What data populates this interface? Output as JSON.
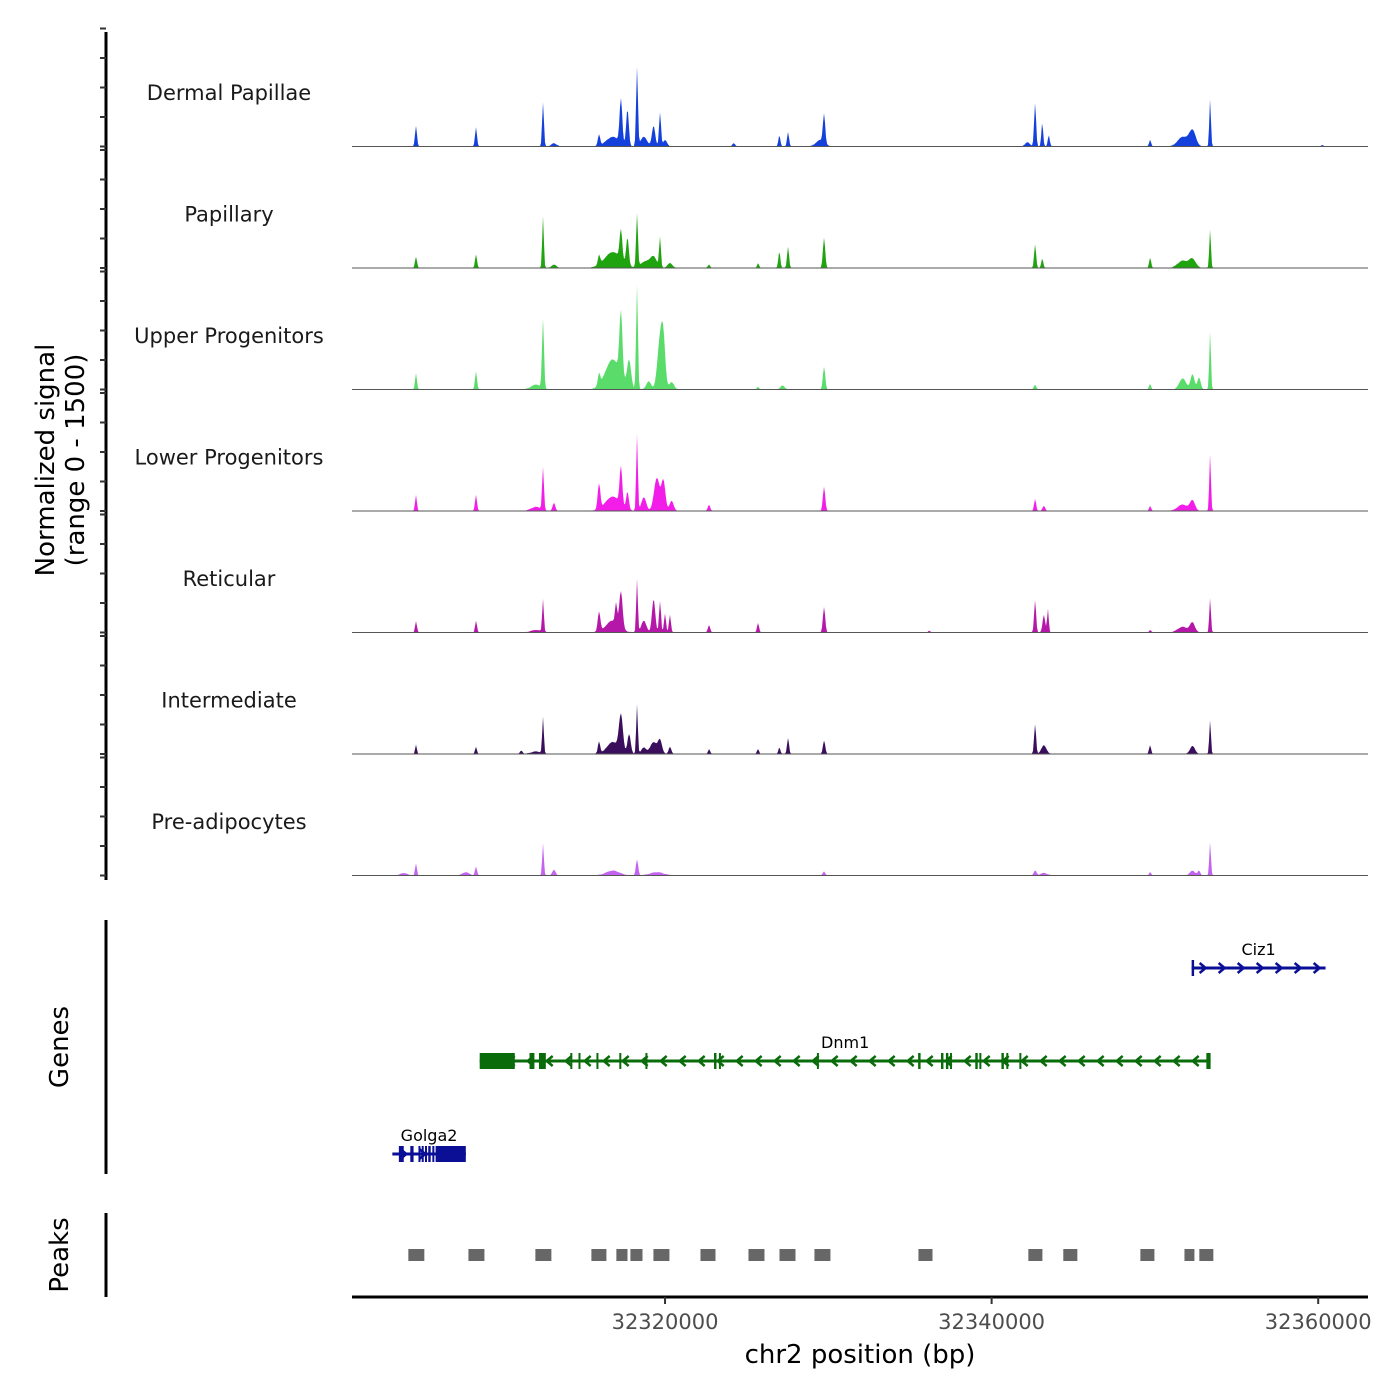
{
  "chart_data": {
    "type": "area",
    "title": "",
    "xlabel": "chr2 position (bp)",
    "ylabel_line1": "Normalized signal",
    "ylabel_line2": "(range 0 - 1500)",
    "xlim": [
      32300830,
      32363050
    ],
    "ylim": [
      0,
      1500
    ],
    "x_ticks": [
      32320000,
      32340000,
      32360000
    ],
    "x_tick_labels": [
      "32320000",
      "32340000",
      "32360000"
    ],
    "grid": false,
    "legend": "none",
    "series": [
      {
        "name": "Dermal Papillae",
        "color": "#1440DC",
        "peaks": [
          [
            32304749,
            260,
            60
          ],
          [
            32308424,
            240,
            60
          ],
          [
            32312528,
            560,
            55
          ],
          [
            32313200,
            40,
            150
          ],
          [
            32315958,
            140,
            70
          ],
          [
            32316800,
            120,
            400
          ],
          [
            32317300,
            560,
            80
          ],
          [
            32317700,
            460,
            80
          ],
          [
            32318285,
            1000,
            55
          ],
          [
            32318700,
            120,
            200
          ],
          [
            32319300,
            260,
            100
          ],
          [
            32319694,
            430,
            60
          ],
          [
            32320000,
            80,
            120
          ],
          [
            32324200,
            40,
            80
          ],
          [
            32327000,
            140,
            60
          ],
          [
            32327534,
            180,
            60
          ],
          [
            32329739,
            370,
            70
          ],
          [
            32329500,
            80,
            250
          ],
          [
            32342200,
            50,
            150
          ],
          [
            32342663,
            550,
            60
          ],
          [
            32343100,
            300,
            55
          ],
          [
            32343500,
            140,
            60
          ],
          [
            32349706,
            80,
            60
          ],
          [
            32351700,
            120,
            300
          ],
          [
            32352300,
            200,
            200
          ],
          [
            32353381,
            600,
            50
          ],
          [
            32360241,
            20,
            60
          ]
        ]
      },
      {
        "name": "Papillary",
        "color": "#1FA30F",
        "peaks": [
          [
            32304749,
            140,
            60
          ],
          [
            32308424,
            170,
            60
          ],
          [
            32312528,
            660,
            50
          ],
          [
            32313200,
            40,
            150
          ],
          [
            32315958,
            120,
            70
          ],
          [
            32316800,
            200,
            500
          ],
          [
            32317300,
            380,
            80
          ],
          [
            32317700,
            350,
            80
          ],
          [
            32318285,
            680,
            55
          ],
          [
            32318800,
            80,
            300
          ],
          [
            32319300,
            130,
            200
          ],
          [
            32319694,
            380,
            55
          ],
          [
            32320300,
            60,
            150
          ],
          [
            32322695,
            40,
            70
          ],
          [
            32325696,
            60,
            60
          ],
          [
            32327000,
            210,
            60
          ],
          [
            32327534,
            270,
            60
          ],
          [
            32329739,
            380,
            70
          ],
          [
            32342663,
            300,
            60
          ],
          [
            32343100,
            120,
            60
          ],
          [
            32349706,
            130,
            60
          ],
          [
            32351700,
            90,
            300
          ],
          [
            32352300,
            110,
            200
          ],
          [
            32353381,
            490,
            50
          ]
        ]
      },
      {
        "name": "Upper Progenitors",
        "color": "#5ADC6A",
        "peaks": [
          [
            32304749,
            210,
            55
          ],
          [
            32308424,
            230,
            60
          ],
          [
            32312528,
            880,
            60
          ],
          [
            32312100,
            60,
            300
          ],
          [
            32315958,
            150,
            70
          ],
          [
            32316800,
            380,
            450
          ],
          [
            32317300,
            810,
            90
          ],
          [
            32317800,
            350,
            120
          ],
          [
            32318285,
            1330,
            55
          ],
          [
            32319000,
            100,
            150
          ],
          [
            32319694,
            620,
            160
          ],
          [
            32319900,
            520,
            120
          ],
          [
            32320400,
            90,
            150
          ],
          [
            32325696,
            30,
            60
          ],
          [
            32327200,
            50,
            120
          ],
          [
            32329739,
            290,
            70
          ],
          [
            32342663,
            60,
            70
          ],
          [
            32349706,
            70,
            60
          ],
          [
            32351700,
            140,
            200
          ],
          [
            32352300,
            190,
            120
          ],
          [
            32353381,
            740,
            50
          ],
          [
            32352700,
            150,
            100
          ]
        ]
      },
      {
        "name": "Lower Progenitors",
        "color": "#F21DE8",
        "peaks": [
          [
            32304749,
            200,
            55
          ],
          [
            32308424,
            200,
            60
          ],
          [
            32312528,
            540,
            55
          ],
          [
            32312100,
            50,
            300
          ],
          [
            32313200,
            100,
            80
          ],
          [
            32315958,
            320,
            80
          ],
          [
            32316800,
            180,
            450
          ],
          [
            32317300,
            480,
            80
          ],
          [
            32317700,
            220,
            80
          ],
          [
            32318285,
            970,
            50
          ],
          [
            32318700,
            170,
            150
          ],
          [
            32319500,
            420,
            170
          ],
          [
            32319900,
            380,
            120
          ],
          [
            32320400,
            130,
            120
          ],
          [
            32322695,
            80,
            70
          ],
          [
            32329739,
            310,
            70
          ],
          [
            32342663,
            150,
            60
          ],
          [
            32343200,
            60,
            80
          ],
          [
            32349706,
            60,
            60
          ],
          [
            32351700,
            80,
            300
          ],
          [
            32352300,
            130,
            150
          ],
          [
            32353381,
            720,
            50
          ]
        ]
      },
      {
        "name": "Reticular",
        "color": "#B518A8",
        "peaks": [
          [
            32304749,
            140,
            55
          ],
          [
            32308424,
            150,
            55
          ],
          [
            32312528,
            420,
            50
          ],
          [
            32312100,
            30,
            300
          ],
          [
            32315958,
            250,
            80
          ],
          [
            32316800,
            150,
            400
          ],
          [
            32317000,
            250,
            60
          ],
          [
            32317300,
            460,
            100
          ],
          [
            32318285,
            680,
            50
          ],
          [
            32318700,
            150,
            150
          ],
          [
            32319300,
            420,
            100
          ],
          [
            32319694,
            400,
            60
          ],
          [
            32320000,
            240,
            60
          ],
          [
            32320300,
            220,
            60
          ],
          [
            32322695,
            90,
            70
          ],
          [
            32325696,
            120,
            60
          ],
          [
            32329739,
            320,
            70
          ],
          [
            32336170,
            20,
            60
          ],
          [
            32342663,
            410,
            60
          ],
          [
            32343200,
            220,
            80
          ],
          [
            32343450,
            300,
            50
          ],
          [
            32349706,
            30,
            60
          ],
          [
            32351700,
            70,
            300
          ],
          [
            32352300,
            120,
            150
          ],
          [
            32353381,
            440,
            50
          ]
        ]
      },
      {
        "name": "Intermediate",
        "color": "#3A0E5C",
        "peaks": [
          [
            32304749,
            120,
            50
          ],
          [
            32308424,
            90,
            55
          ],
          [
            32311200,
            40,
            80
          ],
          [
            32312528,
            460,
            50
          ],
          [
            32312100,
            30,
            300
          ],
          [
            32315958,
            150,
            70
          ],
          [
            32316800,
            150,
            350
          ],
          [
            32317300,
            460,
            120
          ],
          [
            32317800,
            250,
            100
          ],
          [
            32318285,
            630,
            50
          ],
          [
            32318700,
            80,
            150
          ],
          [
            32319300,
            150,
            200
          ],
          [
            32319694,
            170,
            120
          ],
          [
            32320300,
            90,
            80
          ],
          [
            32322695,
            60,
            60
          ],
          [
            32325696,
            60,
            60
          ],
          [
            32327000,
            80,
            60
          ],
          [
            32327534,
            200,
            60
          ],
          [
            32329739,
            170,
            70
          ],
          [
            32342663,
            380,
            60
          ],
          [
            32343200,
            110,
            150
          ],
          [
            32349706,
            110,
            60
          ],
          [
            32352300,
            100,
            150
          ],
          [
            32353381,
            430,
            50
          ]
        ]
      },
      {
        "name": "Pre-adipocytes",
        "color": "#C363F0",
        "peaks": [
          [
            32304749,
            150,
            55
          ],
          [
            32304000,
            30,
            200
          ],
          [
            32308424,
            110,
            60
          ],
          [
            32307800,
            40,
            200
          ],
          [
            32312528,
            410,
            50
          ],
          [
            32313200,
            70,
            100
          ],
          [
            32316800,
            60,
            400
          ],
          [
            32318285,
            200,
            70
          ],
          [
            32319500,
            40,
            400
          ],
          [
            32329739,
            50,
            70
          ],
          [
            32342663,
            60,
            80
          ],
          [
            32343200,
            30,
            200
          ],
          [
            32349706,
            40,
            60
          ],
          [
            32352300,
            60,
            150
          ],
          [
            32352700,
            60,
            80
          ],
          [
            32353381,
            420,
            50
          ]
        ]
      }
    ],
    "genes": [
      {
        "name": "Dnm1",
        "strand": "-",
        "color": "#0A6B0A",
        "start": 32308650,
        "end": 32353410,
        "exons": [
          [
            32308650,
            32310800
          ],
          [
            32311700,
            32312000
          ],
          [
            32312280,
            32312700
          ],
          [
            32314200,
            32314300
          ],
          [
            32314700,
            32314800
          ],
          [
            32315800,
            32315900
          ],
          [
            32317200,
            32317300
          ],
          [
            32318800,
            32318900
          ],
          [
            32323000,
            32323150
          ],
          [
            32323300,
            32323350
          ],
          [
            32329300,
            32329350
          ],
          [
            32335500,
            32335650
          ],
          [
            32336900,
            32337050
          ],
          [
            32337200,
            32337350
          ],
          [
            32337450,
            32337550
          ],
          [
            32339000,
            32339150
          ],
          [
            32339250,
            32339350
          ],
          [
            32340600,
            32340750
          ],
          [
            32340900,
            32341000
          ],
          [
            32341700,
            32341800
          ],
          [
            32353150,
            32353410
          ]
        ]
      },
      {
        "name": "Ciz1",
        "strand": "+",
        "color": "#0A0F96",
        "start": 32352250,
        "end": 32360450,
        "exons": [
          [
            32352250,
            32352400
          ]
        ]
      },
      {
        "name": "Golga2",
        "strand": "+",
        "color": "#0A0F96",
        "start": 32303300,
        "end": 32307800,
        "exons": [
          [
            32303700,
            32304000
          ],
          [
            32304400,
            32304600
          ],
          [
            32304900,
            32305000
          ],
          [
            32305100,
            32305200
          ],
          [
            32305300,
            32305400
          ],
          [
            32305500,
            32305650
          ],
          [
            32305750,
            32305850
          ],
          [
            32305950,
            32307800
          ]
        ]
      }
    ],
    "gene_rows": {
      "Ciz1": 0,
      "Dnm1": 1,
      "Golga2": 2
    },
    "peaks_track": {
      "label": "Peaks",
      "color": "#676767",
      "regions": [
        [
          32304280,
          32305260
        ],
        [
          32307960,
          32308940
        ],
        [
          32312060,
          32313040
        ],
        [
          32315490,
          32316410
        ],
        [
          32317020,
          32317700
        ],
        [
          32317880,
          32318620
        ],
        [
          32319290,
          32320270
        ],
        [
          32322170,
          32323090
        ],
        [
          32325110,
          32326090
        ],
        [
          32327010,
          32327990
        ],
        [
          32329150,
          32330130
        ],
        [
          32335520,
          32336380
        ],
        [
          32342250,
          32343110
        ],
        [
          32344390,
          32345250
        ],
        [
          32349110,
          32349970
        ],
        [
          32351810,
          32352420
        ],
        [
          32352720,
          32353580
        ]
      ]
    },
    "panel_labels": {
      "genes": "Genes",
      "peaks": "Peaks"
    }
  }
}
